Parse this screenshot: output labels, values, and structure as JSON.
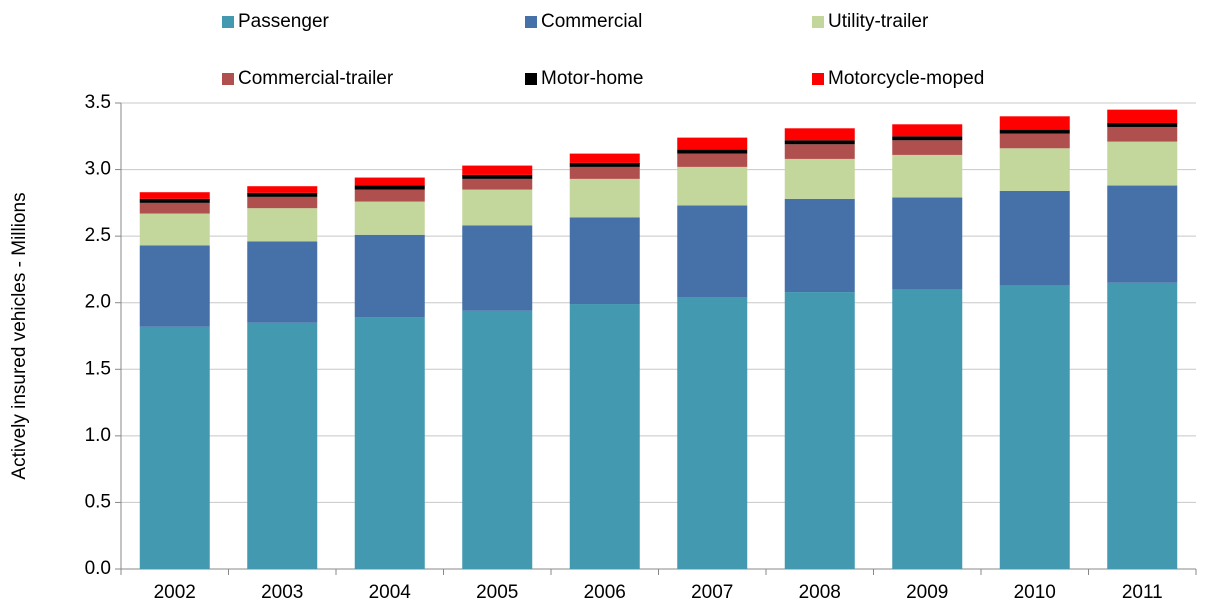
{
  "chart_data": {
    "type": "stacked-bar",
    "y_axis_label": "Actively insured vehicles - Millions",
    "categories": [
      "2002",
      "2003",
      "2004",
      "2005",
      "2006",
      "2007",
      "2008",
      "2009",
      "2010",
      "2011"
    ],
    "series": [
      {
        "name": "Passenger",
        "color": "#4299b0",
        "values": [
          1.82,
          1.85,
          1.89,
          1.94,
          1.99,
          2.04,
          2.08,
          2.1,
          2.13,
          2.15
        ]
      },
      {
        "name": "Commercial",
        "color": "#4570a8",
        "values": [
          0.61,
          0.61,
          0.62,
          0.64,
          0.65,
          0.69,
          0.7,
          0.69,
          0.71,
          0.73
        ]
      },
      {
        "name": "Utility-trailer",
        "color": "#c3d69b",
        "values": [
          0.24,
          0.25,
          0.25,
          0.27,
          0.29,
          0.29,
          0.3,
          0.32,
          0.32,
          0.33
        ]
      },
      {
        "name": "Commercial-trailer",
        "color": "#b0504e",
        "values": [
          0.08,
          0.085,
          0.09,
          0.08,
          0.09,
          0.1,
          0.11,
          0.11,
          0.11,
          0.11
        ]
      },
      {
        "name": "Motor-home",
        "color": "#000000",
        "values": [
          0.03,
          0.03,
          0.03,
          0.03,
          0.03,
          0.03,
          0.03,
          0.03,
          0.03,
          0.03
        ]
      },
      {
        "name": "Motorcycle-moped",
        "color": "#ff0000",
        "values": [
          0.05,
          0.05,
          0.06,
          0.07,
          0.07,
          0.09,
          0.09,
          0.09,
          0.1,
          0.1
        ]
      }
    ],
    "ylim": [
      0,
      3.5
    ],
    "yticks": [
      {
        "value": 0,
        "label": "0.0"
      },
      0.5,
      {
        "value": 1,
        "label": "1.0"
      },
      1.5,
      {
        "value": 2,
        "label": "2.0"
      },
      2.5,
      {
        "value": 3,
        "label": "3.0"
      },
      3.5
    ],
    "grid": true
  }
}
